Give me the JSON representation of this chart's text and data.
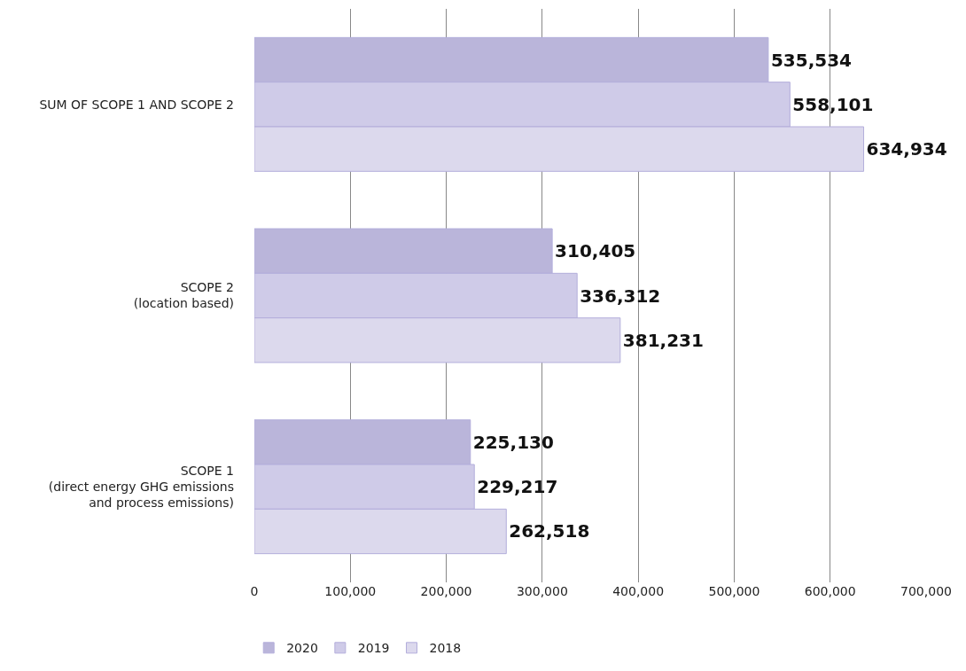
{
  "chart_data": {
    "type": "bar",
    "orientation": "horizontal",
    "categories": [
      "SUM OF SCOPE 1 AND SCOPE 2",
      "SCOPE 2\n(location based)",
      "SCOPE 1\n(direct energy GHG emissions\nand process emissions)"
    ],
    "series": [
      {
        "name": "2020",
        "color": "#bab5da",
        "values": [
          535534,
          310405,
          225130
        ],
        "value_labels": [
          "535,534",
          "310,405",
          "225,130"
        ]
      },
      {
        "name": "2019",
        "color": "#cfcbe8",
        "values": [
          558101,
          336312,
          229217
        ],
        "value_labels": [
          "558,101",
          "336,312",
          "229,217"
        ]
      },
      {
        "name": "2018",
        "color": "#dcd9ed",
        "values": [
          634934,
          381231,
          262518
        ],
        "value_labels": [
          "634,934",
          "381,231",
          "262,518"
        ]
      }
    ],
    "xlim": [
      0,
      700000
    ],
    "xticks": [
      {
        "value": 0,
        "label": "0"
      },
      {
        "value": 100000,
        "label": "100,000"
      },
      {
        "value": 200000,
        "label": "200,000"
      },
      {
        "value": 300000,
        "label": "300,000"
      },
      {
        "value": 400000,
        "label": "400,000"
      },
      {
        "value": 500000,
        "label": "500,000"
      },
      {
        "value": 600000,
        "label": "600,000"
      },
      {
        "value": 700000,
        "label": "700,000"
      }
    ],
    "grid": "x",
    "legend": "bottom left"
  }
}
